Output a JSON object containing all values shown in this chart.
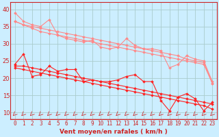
{
  "xlabel": "Vent moyen/en rafales ( km/h )",
  "background_color": "#cceeff",
  "grid_color": "#aacccc",
  "x_values": [
    0,
    1,
    2,
    3,
    4,
    5,
    6,
    7,
    8,
    9,
    10,
    11,
    12,
    13,
    14,
    15,
    16,
    17,
    18,
    19,
    20,
    21,
    22,
    23
  ],
  "xlim": [
    -0.5,
    23.5
  ],
  "ylim": [
    8,
    42
  ],
  "yticks": [
    10,
    15,
    20,
    25,
    30,
    35,
    40
  ],
  "series": [
    {
      "color": "#ff8888",
      "linewidth": 0.8,
      "markersize": 2.0,
      "y": [
        39.0,
        36.5,
        35.5,
        35.0,
        37.0,
        32.5,
        31.5,
        31.0,
        30.5,
        31.0,
        29.0,
        28.5,
        29.0,
        31.5,
        29.5,
        28.5,
        28.5,
        28.0,
        23.0,
        24.0,
        26.5,
        25.5,
        25.0,
        19.0
      ]
    },
    {
      "color": "#ff8888",
      "linewidth": 0.8,
      "markersize": 2.0,
      "y": [
        36.5,
        35.5,
        35.0,
        34.5,
        34.0,
        33.5,
        33.0,
        32.5,
        32.0,
        31.5,
        31.0,
        30.5,
        30.0,
        29.5,
        29.0,
        28.5,
        28.0,
        27.5,
        27.0,
        26.5,
        25.5,
        25.0,
        24.5,
        18.5
      ]
    },
    {
      "color": "#ff8888",
      "linewidth": 0.8,
      "markersize": 2.0,
      "y": [
        36.5,
        35.5,
        34.5,
        33.5,
        33.0,
        32.5,
        32.0,
        31.5,
        31.0,
        30.5,
        30.0,
        29.5,
        29.0,
        28.5,
        28.0,
        27.5,
        27.0,
        26.5,
        26.0,
        25.5,
        25.0,
        24.5,
        24.0,
        18.5
      ]
    },
    {
      "color": "#ff2222",
      "linewidth": 0.8,
      "markersize": 2.0,
      "y": [
        24.0,
        27.0,
        20.5,
        21.0,
        23.5,
        22.0,
        22.5,
        22.5,
        19.0,
        19.5,
        19.0,
        19.0,
        19.5,
        20.5,
        21.0,
        19.0,
        19.0,
        13.5,
        10.5,
        14.5,
        15.5,
        14.0,
        10.5,
        13.0
      ]
    },
    {
      "color": "#ff2222",
      "linewidth": 0.8,
      "markersize": 2.0,
      "y": [
        23.5,
        23.5,
        23.0,
        22.5,
        22.0,
        21.5,
        21.0,
        20.5,
        20.0,
        19.5,
        19.0,
        18.5,
        18.0,
        17.5,
        17.0,
        16.5,
        16.0,
        15.5,
        15.0,
        14.5,
        14.0,
        13.5,
        13.0,
        12.5
      ]
    },
    {
      "color": "#ff2222",
      "linewidth": 0.8,
      "markersize": 2.0,
      "y": [
        23.0,
        22.5,
        22.0,
        21.5,
        21.0,
        20.5,
        20.0,
        19.5,
        19.0,
        18.5,
        18.0,
        17.5,
        17.0,
        16.5,
        16.0,
        15.5,
        15.0,
        14.5,
        14.0,
        13.5,
        13.0,
        12.5,
        12.0,
        11.0
      ]
    }
  ],
  "arrow_color": "#cc3333",
  "tick_color": "#cc2222",
  "spine_color": "#cc2222",
  "tick_fontsize": 5.5,
  "xlabel_fontsize": 6.5
}
